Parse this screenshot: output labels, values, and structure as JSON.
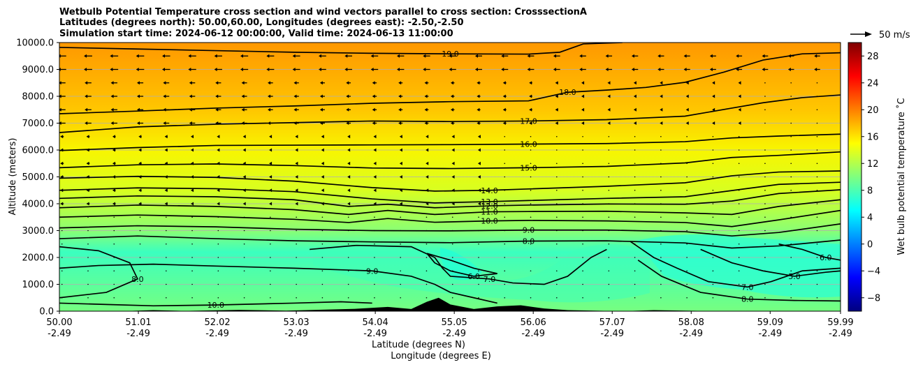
{
  "chart_data": {
    "type": "contour",
    "title_lines": [
      "Wetbulb Potential Temperature cross section and wind vectors parallel to cross section: CrosssectionA",
      "Latitudes (degrees north): 50.00,60.00, Longitudes (degrees east): -2.50,-2.50",
      "Simulation start time: 2024-06-12 00:00:00, Valid time: 2024-06-13 11:00:00"
    ],
    "xlabel": "Latitude (degrees N)",
    "xlabel2": "Longitude (degrees E)",
    "ylabel": "Altitude (meters)",
    "x_ticks": [
      {
        "lat": "50.00",
        "lon": "-2.49"
      },
      {
        "lat": "51.01",
        "lon": "-2.49"
      },
      {
        "lat": "52.02",
        "lon": "-2.49"
      },
      {
        "lat": "53.03",
        "lon": "-2.49"
      },
      {
        "lat": "54.04",
        "lon": "-2.49"
      },
      {
        "lat": "55.05",
        "lon": "-2.49"
      },
      {
        "lat": "56.06",
        "lon": "-2.49"
      },
      {
        "lat": "57.07",
        "lon": "-2.49"
      },
      {
        "lat": "58.08",
        "lon": "-2.49"
      },
      {
        "lat": "59.09",
        "lon": "-2.49"
      },
      {
        "lat": "59.99",
        "lon": "-2.49"
      }
    ],
    "x_range": [
      50.0,
      59.99
    ],
    "y_ticks": [
      "0.0",
      "1000.0",
      "2000.0",
      "3000.0",
      "4000.0",
      "5000.0",
      "6000.0",
      "7000.0",
      "8000.0",
      "9000.0",
      "10000.0"
    ],
    "ylim": [
      0,
      10000
    ],
    "grid": "horizontal",
    "colorbar": {
      "label": "Wet bulb potential temperature ˚C",
      "range": [
        -10,
        30
      ],
      "ticks": [
        "−8",
        "−4",
        "0",
        "4",
        "8",
        "12",
        "16",
        "20",
        "24",
        "28"
      ],
      "colormap": "jet",
      "colormap_stops": [
        "#00007f",
        "#0000ff",
        "#007fff",
        "#00ffff",
        "#7fff7f",
        "#ffff00",
        "#ff7f00",
        "#ff0000",
        "#7f0000"
      ]
    },
    "quiver_key": {
      "label": "50 m/s"
    },
    "contours": [
      {
        "level": 19,
        "label": "19.0",
        "points": [
          [
            50.0,
            9820
          ],
          [
            51.0,
            9760
          ],
          [
            52.0,
            9700
          ],
          [
            53.0,
            9640
          ],
          [
            54.0,
            9600
          ],
          [
            55.0,
            9580
          ],
          [
            56.0,
            9570
          ],
          [
            56.4,
            9640
          ],
          [
            56.7,
            9950
          ],
          [
            57.2,
            10000
          ]
        ]
      },
      {
        "level": 18,
        "label": "18.0",
        "points": [
          [
            50.0,
            7350
          ],
          [
            51.0,
            7450
          ],
          [
            52.0,
            7560
          ],
          [
            53.0,
            7640
          ],
          [
            54.0,
            7740
          ],
          [
            55.0,
            7800
          ],
          [
            56.0,
            7830
          ],
          [
            56.5,
            8150
          ],
          [
            57.0,
            8230
          ],
          [
            57.5,
            8330
          ],
          [
            58.0,
            8520
          ],
          [
            58.5,
            8900
          ],
          [
            59.0,
            9350
          ],
          [
            59.5,
            9580
          ],
          [
            59.99,
            9620
          ]
        ]
      },
      {
        "level": 17,
        "label": "17.0",
        "points": [
          [
            50.0,
            6650
          ],
          [
            51.0,
            6860
          ],
          [
            52.0,
            6960
          ],
          [
            53.0,
            7020
          ],
          [
            54.0,
            7080
          ],
          [
            55.0,
            7060
          ],
          [
            56.0,
            7080
          ],
          [
            57.0,
            7130
          ],
          [
            58.0,
            7260
          ],
          [
            58.6,
            7560
          ],
          [
            59.0,
            7760
          ],
          [
            59.5,
            7950
          ],
          [
            59.99,
            8050
          ]
        ]
      },
      {
        "level": 16,
        "label": "16.0",
        "points": [
          [
            50.0,
            5980
          ],
          [
            51.0,
            6090
          ],
          [
            52.0,
            6170
          ],
          [
            53.0,
            6180
          ],
          [
            54.0,
            6190
          ],
          [
            55.0,
            6200
          ],
          [
            56.0,
            6220
          ],
          [
            57.0,
            6240
          ],
          [
            58.0,
            6310
          ],
          [
            58.6,
            6450
          ],
          [
            59.2,
            6520
          ],
          [
            59.99,
            6590
          ]
        ]
      },
      {
        "level": 15,
        "label": "15.0",
        "points": [
          [
            50.0,
            5340
          ],
          [
            51.0,
            5450
          ],
          [
            52.0,
            5480
          ],
          [
            53.0,
            5420
          ],
          [
            54.0,
            5330
          ],
          [
            55.0,
            5310
          ],
          [
            56.0,
            5340
          ],
          [
            57.0,
            5390
          ],
          [
            58.0,
            5520
          ],
          [
            58.6,
            5720
          ],
          [
            59.2,
            5800
          ],
          [
            59.99,
            5930
          ]
        ]
      },
      {
        "level": 14,
        "label": "14.0",
        "points": [
          [
            50.0,
            4950
          ],
          [
            51.0,
            5020
          ],
          [
            52.0,
            4980
          ],
          [
            53.0,
            4840
          ],
          [
            54.0,
            4600
          ],
          [
            54.8,
            4470
          ],
          [
            55.5,
            4500
          ],
          [
            56.0,
            4550
          ],
          [
            57.0,
            4650
          ],
          [
            58.0,
            4780
          ],
          [
            58.6,
            5040
          ],
          [
            59.2,
            5180
          ],
          [
            59.99,
            5220
          ]
        ]
      },
      {
        "level": 13,
        "label": "13.0",
        "points": [
          [
            50.0,
            4500
          ],
          [
            51.0,
            4590
          ],
          [
            52.0,
            4560
          ],
          [
            53.0,
            4450
          ],
          [
            54.0,
            4180
          ],
          [
            54.8,
            4030
          ],
          [
            55.5,
            4080
          ],
          [
            56.0,
            4120
          ],
          [
            57.0,
            4200
          ],
          [
            58.0,
            4260
          ],
          [
            58.6,
            4490
          ],
          [
            59.2,
            4720
          ],
          [
            59.99,
            4800
          ]
        ]
      },
      {
        "level": 12,
        "label": "12.0",
        "points": [
          [
            50.0,
            4200
          ],
          [
            51.0,
            4290
          ],
          [
            52.0,
            4260
          ],
          [
            53.0,
            4150
          ],
          [
            53.7,
            3900
          ],
          [
            54.2,
            3980
          ],
          [
            54.8,
            3850
          ],
          [
            55.5,
            3920
          ],
          [
            56.0,
            3950
          ],
          [
            57.0,
            3990
          ],
          [
            58.0,
            3980
          ],
          [
            58.6,
            4100
          ],
          [
            59.2,
            4380
          ],
          [
            59.99,
            4520
          ]
        ]
      },
      {
        "level": 11,
        "label": "11.0",
        "points": [
          [
            50.0,
            3850
          ],
          [
            51.0,
            3950
          ],
          [
            52.0,
            3900
          ],
          [
            53.0,
            3780
          ],
          [
            53.7,
            3600
          ],
          [
            54.2,
            3750
          ],
          [
            54.8,
            3600
          ],
          [
            55.5,
            3700
          ],
          [
            56.0,
            3710
          ],
          [
            57.0,
            3720
          ],
          [
            58.0,
            3660
          ],
          [
            58.6,
            3600
          ],
          [
            59.2,
            3900
          ],
          [
            59.99,
            4150
          ]
        ]
      },
      {
        "level": 10,
        "label": "10.0",
        "points": [
          [
            50.0,
            3500
          ],
          [
            51.0,
            3580
          ],
          [
            52.0,
            3520
          ],
          [
            53.0,
            3420
          ],
          [
            53.7,
            3300
          ],
          [
            54.2,
            3450
          ],
          [
            54.8,
            3310
          ],
          [
            55.5,
            3360
          ],
          [
            56.0,
            3380
          ],
          [
            57.0,
            3360
          ],
          [
            58.0,
            3300
          ],
          [
            58.6,
            3150
          ],
          [
            59.2,
            3400
          ],
          [
            59.99,
            3750
          ]
        ]
      },
      {
        "level": 9,
        "label": "9.0",
        "points": [
          [
            50.0,
            3100
          ],
          [
            51.0,
            3180
          ],
          [
            52.0,
            3140
          ],
          [
            53.0,
            3050
          ],
          [
            54.0,
            3000
          ],
          [
            55.0,
            2990
          ],
          [
            56.0,
            3020
          ],
          [
            57.0,
            3020
          ],
          [
            58.0,
            2960
          ],
          [
            58.6,
            2800
          ],
          [
            59.2,
            2930
          ],
          [
            59.99,
            3250
          ]
        ]
      },
      {
        "level": 8,
        "label": "8.0",
        "points": [
          [
            50.0,
            2700
          ],
          [
            51.0,
            2800
          ],
          [
            52.0,
            2700
          ],
          [
            53.0,
            2620
          ],
          [
            54.0,
            2580
          ],
          [
            55.0,
            2550
          ],
          [
            56.0,
            2610
          ],
          [
            57.0,
            2620
          ],
          [
            58.0,
            2540
          ],
          [
            58.6,
            2350
          ],
          [
            59.2,
            2430
          ],
          [
            59.99,
            2650
          ]
        ]
      },
      {
        "level": 8,
        "label": "8.0",
        "points": [
          [
            50.0,
            2400
          ],
          [
            50.5,
            2250
          ],
          [
            50.9,
            1800
          ],
          [
            51.0,
            1200
          ],
          [
            50.6,
            700
          ],
          [
            50.0,
            500
          ]
        ]
      },
      {
        "level": 9,
        "label": "9.0",
        "points": [
          [
            50.0,
            1600
          ],
          [
            50.5,
            1700
          ],
          [
            51.2,
            1750
          ],
          [
            52.0,
            1680
          ],
          [
            53.0,
            1600
          ],
          [
            54.0,
            1500
          ],
          [
            54.5,
            1300
          ],
          [
            54.8,
            1000
          ],
          [
            55.0,
            700
          ],
          [
            55.3,
            500
          ],
          [
            55.6,
            300
          ]
        ]
      },
      {
        "level": 7,
        "label": "7.0",
        "points": [
          [
            53.2,
            2300
          ],
          [
            53.8,
            2450
          ],
          [
            54.5,
            2400
          ],
          [
            54.8,
            2000
          ],
          [
            54.9,
            1600
          ],
          [
            55.0,
            1300
          ],
          [
            55.5,
            1200
          ],
          [
            55.8,
            1050
          ],
          [
            56.2,
            1000
          ],
          [
            56.5,
            1300
          ],
          [
            56.8,
            2000
          ],
          [
            57.0,
            2300
          ]
        ]
      },
      {
        "level": 6,
        "label": "6.0",
        "points": [
          [
            54.7,
            2150
          ],
          [
            55.0,
            1900
          ],
          [
            55.3,
            1600
          ],
          [
            55.6,
            1400
          ],
          [
            55.3,
            1300
          ],
          [
            55.0,
            1500
          ],
          [
            54.8,
            1800
          ],
          [
            54.7,
            2150
          ]
        ]
      },
      {
        "level": 7,
        "label": "7.0",
        "points": [
          [
            57.3,
            2600
          ],
          [
            57.6,
            2000
          ],
          [
            57.9,
            1600
          ],
          [
            58.3,
            1100
          ],
          [
            58.8,
            900
          ],
          [
            59.1,
            1100
          ],
          [
            59.5,
            1500
          ],
          [
            59.99,
            1600
          ]
        ]
      },
      {
        "level": 6,
        "label": "6.0",
        "points": [
          [
            59.2,
            2500
          ],
          [
            59.5,
            2300
          ],
          [
            59.8,
            2000
          ],
          [
            59.99,
            1900
          ]
        ]
      },
      {
        "level": 5,
        "label": "5.0",
        "points": [
          [
            58.2,
            2300
          ],
          [
            58.6,
            1800
          ],
          [
            59.0,
            1500
          ],
          [
            59.4,
            1300
          ],
          [
            59.8,
            1450
          ],
          [
            59.99,
            1500
          ]
        ]
      },
      {
        "level": 8,
        "label": "8.0",
        "points": [
          [
            57.4,
            1900
          ],
          [
            57.7,
            1300
          ],
          [
            58.2,
            700
          ],
          [
            58.8,
            450
          ],
          [
            59.4,
            400
          ],
          [
            59.99,
            380
          ]
        ]
      },
      {
        "level": 10,
        "label": "10.0",
        "points": [
          [
            50.0,
            300
          ],
          [
            50.6,
            250
          ],
          [
            51.2,
            200
          ],
          [
            52.0,
            230
          ],
          [
            53.0,
            300
          ],
          [
            53.6,
            350
          ],
          [
            54.0,
            300
          ]
        ]
      }
    ],
    "wind_barbs": "westward-pointing vectors at upper levels; negligible near surface",
    "terrain": "black orography profile along the bottom"
  }
}
